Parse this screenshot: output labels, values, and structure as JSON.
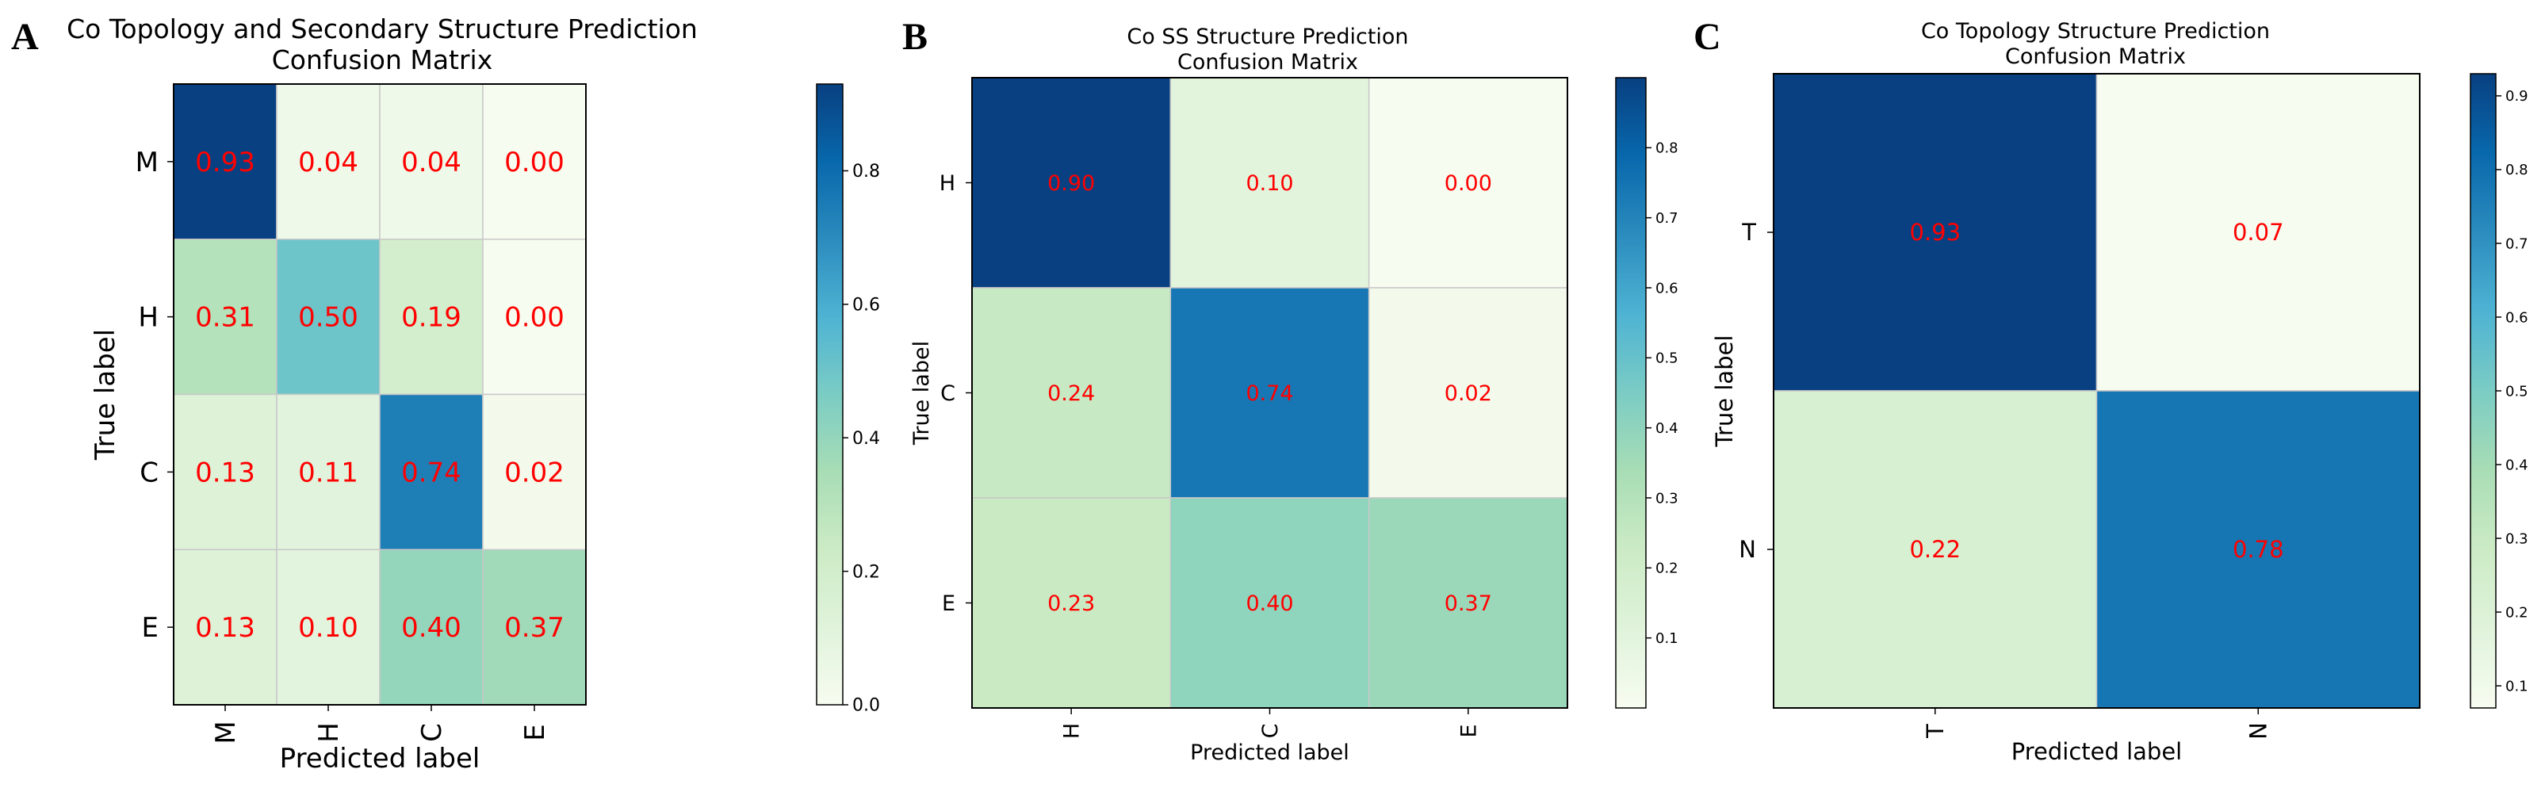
{
  "chart_data": [
    {
      "panel_letter": "A",
      "type": "heatmap",
      "title": [
        "Co Topology and Secondary Structure Prediction",
        "Confusion Matrix"
      ],
      "xlabel": "Predicted label",
      "ylabel": "True label",
      "x_categories": [
        "M",
        "H",
        "C",
        "E"
      ],
      "y_categories": [
        "M",
        "H",
        "C",
        "E"
      ],
      "values": [
        [
          0.93,
          0.04,
          0.04,
          0.0
        ],
        [
          0.31,
          0.5,
          0.19,
          0.0
        ],
        [
          0.13,
          0.11,
          0.74,
          0.02
        ],
        [
          0.13,
          0.1,
          0.4,
          0.37
        ]
      ],
      "value_labels": [
        [
          "0.93",
          "0.04",
          "0.04",
          "0.00"
        ],
        [
          "0.31",
          "0.50",
          "0.19",
          "0.00"
        ],
        [
          "0.13",
          "0.11",
          "0.74",
          "0.02"
        ],
        [
          "0.13",
          "0.10",
          "0.40",
          "0.37"
        ]
      ],
      "colorbar": {
        "range": [
          0.0,
          0.93
        ],
        "ticks": [
          0.0,
          0.2,
          0.4,
          0.6,
          0.8
        ],
        "tick_labels": [
          "0.0",
          "0.2",
          "0.4",
          "0.6",
          "0.8"
        ]
      },
      "colormap": "GnBu",
      "annotation_color": "#ff0000"
    },
    {
      "panel_letter": "B",
      "type": "heatmap",
      "title": [
        "Co SS Structure Prediction",
        "Confusion Matrix"
      ],
      "xlabel": "Predicted label",
      "ylabel": "True label",
      "x_categories": [
        "H",
        "C",
        "E"
      ],
      "y_categories": [
        "H",
        "C",
        "E"
      ],
      "values": [
        [
          0.9,
          0.1,
          0.0
        ],
        [
          0.24,
          0.74,
          0.02
        ],
        [
          0.23,
          0.4,
          0.37
        ]
      ],
      "value_labels": [
        [
          "0.90",
          "0.10",
          "0.00"
        ],
        [
          "0.24",
          "0.74",
          "0.02"
        ],
        [
          "0.23",
          "0.40",
          "0.37"
        ]
      ],
      "colorbar": {
        "range": [
          0.0,
          0.9
        ],
        "ticks": [
          0.1,
          0.2,
          0.3,
          0.4,
          0.5,
          0.6,
          0.7,
          0.8
        ],
        "tick_labels": [
          "0.1",
          "0.2",
          "0.3",
          "0.4",
          "0.5",
          "0.6",
          "0.7",
          "0.8"
        ]
      },
      "colormap": "GnBu",
      "annotation_color": "#ff0000"
    },
    {
      "panel_letter": "C",
      "type": "heatmap",
      "title": [
        "Co Topology Structure Prediction",
        "Confusion Matrix"
      ],
      "xlabel": "Predicted label",
      "ylabel": "True label",
      "x_categories": [
        "T",
        "N"
      ],
      "y_categories": [
        "T",
        "N"
      ],
      "values": [
        [
          0.93,
          0.07
        ],
        [
          0.22,
          0.78
        ]
      ],
      "value_labels": [
        [
          "0.93",
          "0.07"
        ],
        [
          "0.22",
          "0.78"
        ]
      ],
      "colorbar": {
        "range": [
          0.07,
          0.93
        ],
        "ticks": [
          0.1,
          0.2,
          0.3,
          0.4,
          0.5,
          0.6,
          0.7,
          0.8,
          0.9
        ],
        "tick_labels": [
          "0.1",
          "0.2",
          "0.3",
          "0.4",
          "0.5",
          "0.6",
          "0.7",
          "0.8",
          "0.9"
        ]
      },
      "colormap": "GnBu",
      "annotation_color": "#ff0000"
    }
  ]
}
